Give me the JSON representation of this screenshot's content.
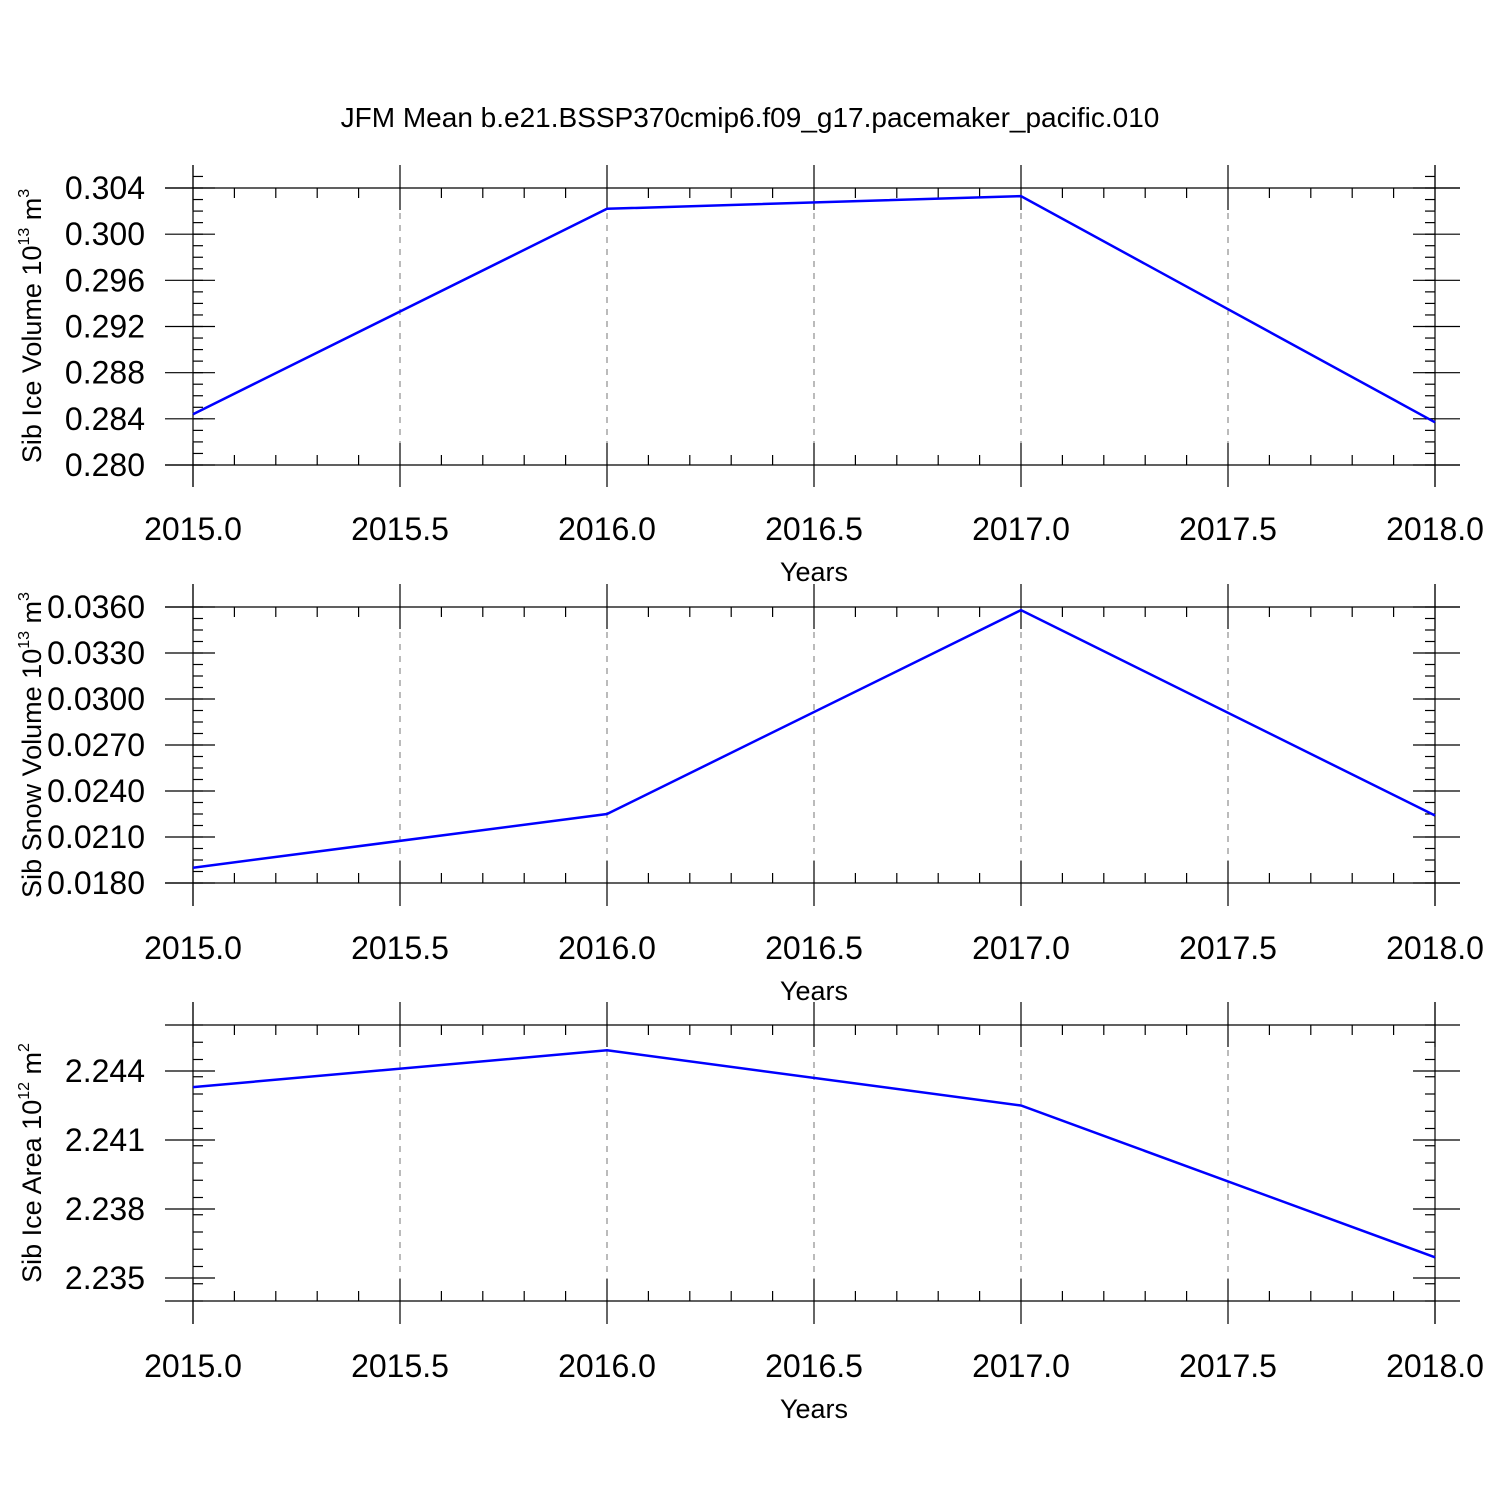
{
  "title": "JFM Mean b.e21.BSSP370cmip6.f09_g17.pacemaker_pacific.010",
  "colors": {
    "series": "#0000ff",
    "axis": "#000000",
    "grid": "#777777"
  },
  "chart_data": [
    {
      "type": "line",
      "title": "JFM Mean b.e21.BSSP370cmip6.f09_g17.pacemaker_pacific.010",
      "xlabel": "Years",
      "ylabel": {
        "text": "Sib Ice Volume 10",
        "exp1": "13",
        "mid": " m",
        "exp2": "3"
      },
      "xlim": [
        2015.0,
        2018.0
      ],
      "ylim": [
        0.28,
        0.306
      ],
      "xticks": [
        "2015.0",
        "2015.5",
        "2016.0",
        "2016.5",
        "2017.0",
        "2017.5",
        "2018.0"
      ],
      "yticks": [
        "0.280",
        "0.284",
        "0.288",
        "0.292",
        "0.296",
        "0.300",
        "0.304"
      ],
      "grid": "vertical dashed at major x ticks",
      "x": [
        2015.0,
        2016.0,
        2017.0,
        2018.0
      ],
      "values": [
        0.2844,
        0.3022,
        0.3033,
        0.2837
      ]
    },
    {
      "type": "line",
      "xlabel": "Years",
      "ylabel": {
        "text": "Sib Snow Volume 10",
        "exp1": "13",
        "mid": " m",
        "exp2": "3"
      },
      "xlim": [
        2015.0,
        2018.0
      ],
      "ylim": [
        0.018,
        0.0363
      ],
      "xticks": [
        "2015.0",
        "2015.5",
        "2016.0",
        "2016.5",
        "2017.0",
        "2017.5",
        "2018.0"
      ],
      "yticks": [
        "0.0180",
        "0.0210",
        "0.0240",
        "0.0270",
        "0.0300",
        "0.0330",
        "0.0360"
      ],
      "grid": "vertical dashed at major x ticks",
      "x": [
        2015.0,
        2016.0,
        2017.0,
        2018.0
      ],
      "values": [
        0.019,
        0.0225,
        0.0358,
        0.0224
      ]
    },
    {
      "type": "line",
      "xlabel": "Years",
      "ylabel": {
        "text": "Sib Ice Area 10",
        "exp1": "12",
        "mid": " m",
        "exp2": "2"
      },
      "xlim": [
        2015.0,
        2018.0
      ],
      "ylim": [
        2.234,
        2.246
      ],
      "xticks": [
        "2015.0",
        "2015.5",
        "2016.0",
        "2016.5",
        "2017.0",
        "2017.5",
        "2018.0"
      ],
      "yticks": [
        "2.235",
        "2.238",
        "2.241",
        "2.244"
      ],
      "grid": "vertical dashed at major x ticks",
      "x": [
        2015.0,
        2016.0,
        2017.0,
        2018.0
      ],
      "values": [
        2.2433,
        2.2449,
        2.2425,
        2.2359
      ]
    }
  ]
}
